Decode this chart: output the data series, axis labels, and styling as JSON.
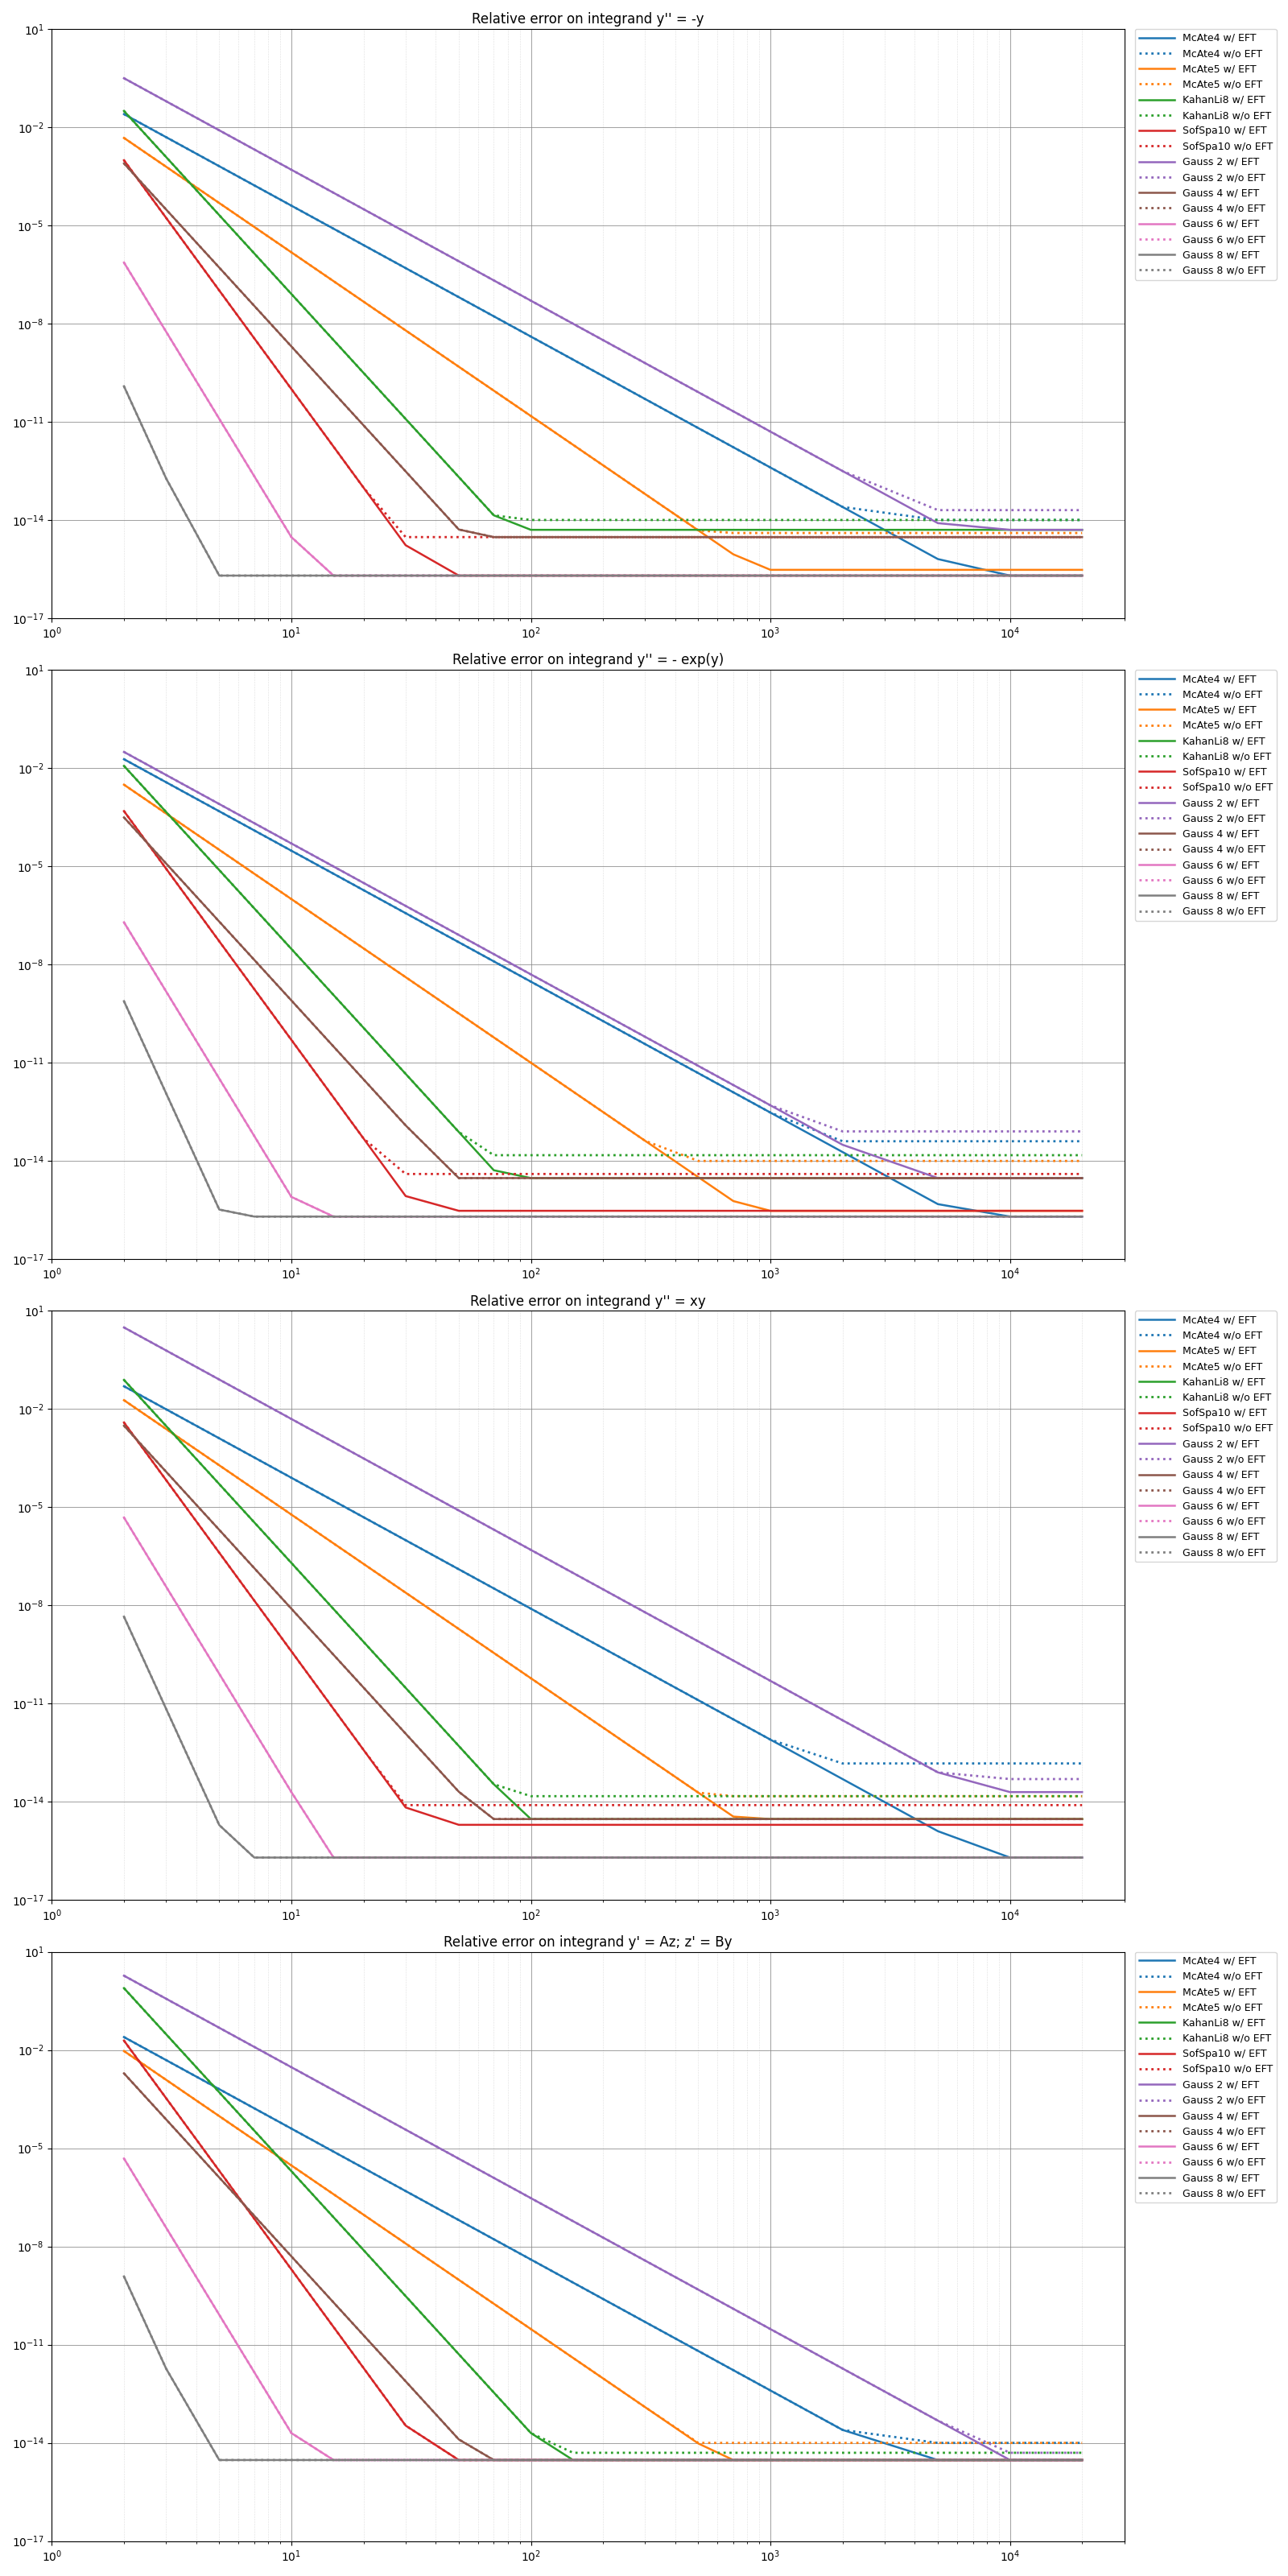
{
  "titles": [
    "Relative error on integrand y'' = -y",
    "Relative error on integrand y'' = - exp(y)",
    "Relative error on integrand y'' = xy",
    "Relative error on integrand y' = Az; z' = By"
  ],
  "colors": {
    "McAte4": "#1f77b4",
    "McAte5": "#ff7f0e",
    "KahanLi8": "#2ca02c",
    "SofSpa10": "#d62728",
    "Gauss2": "#9467bd",
    "Gauss4": "#8c564b",
    "Gauss6": "#e377c2",
    "Gauss8": "#7f7f7f"
  },
  "ylim": [
    1e-17,
    10
  ],
  "xlim": [
    1,
    30000
  ],
  "lw_solid": 1.8,
  "lw_dot": 2.0
}
